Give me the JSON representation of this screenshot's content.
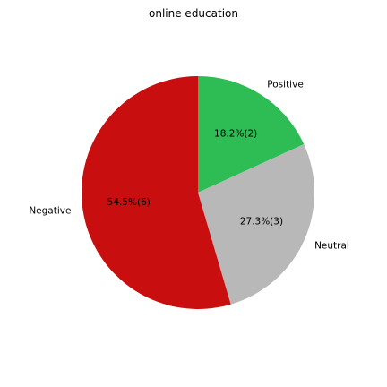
{
  "chart_data": {
    "type": "pie",
    "title": "online education",
    "slices": [
      {
        "label": "Positive",
        "value": 2,
        "percent_label": "18.2%(2)",
        "color": "#2ebd55"
      },
      {
        "label": "Neutral",
        "value": 3,
        "percent_label": "27.3%(3)",
        "color": "#b8b8b8"
      },
      {
        "label": "Negative",
        "value": 6,
        "percent_label": "54.5%(6)",
        "color": "#c80e0e"
      }
    ],
    "start_angle_deg": 90,
    "direction": "clockwise"
  }
}
